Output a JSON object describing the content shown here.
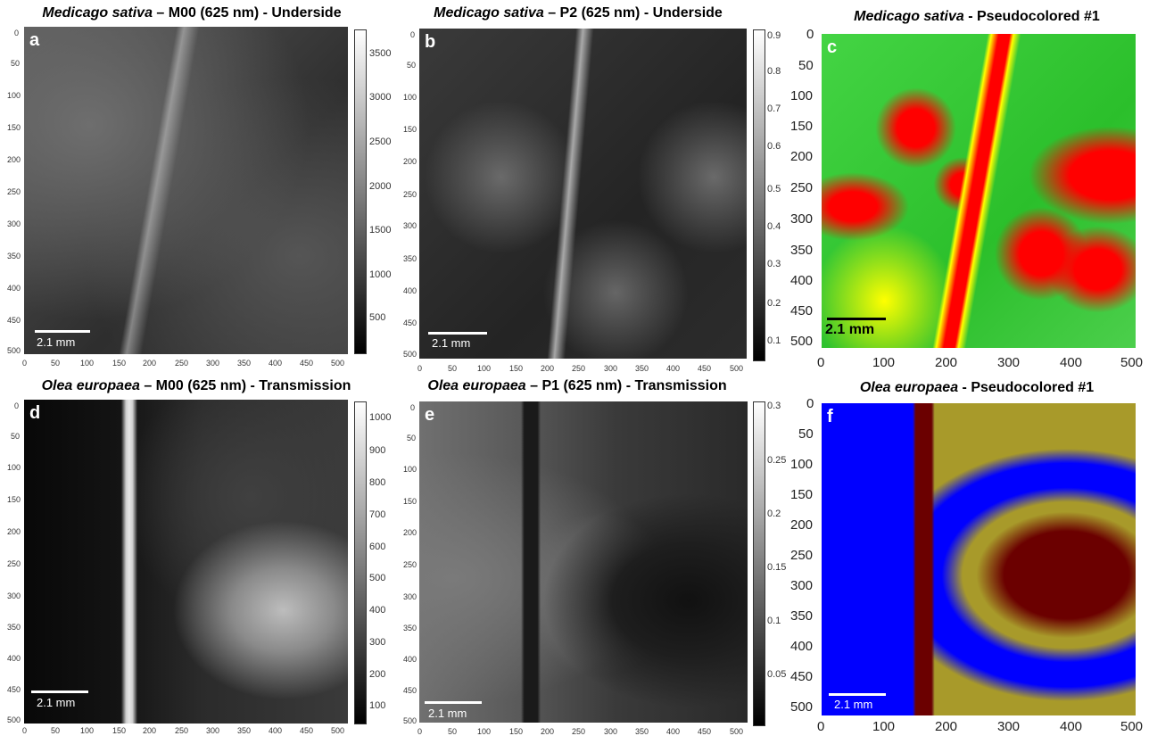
{
  "panels": [
    {
      "letter": "a",
      "title_species": "Medicago sativa",
      "title_rest": " – M00 (625 nm) - Underside",
      "scale": "2.1 mm",
      "colorbar": [
        "3500",
        "3000",
        "2500",
        "2000",
        "1500",
        "1000",
        "500"
      ]
    },
    {
      "letter": "b",
      "title_species": "Medicago sativa",
      "title_rest": " – P2 (625 nm) - Underside",
      "scale": "2.1 mm",
      "colorbar": [
        "0.9",
        "0.8",
        "0.7",
        "0.6",
        "0.5",
        "0.4",
        "0.3",
        "0.2",
        "0.1"
      ]
    },
    {
      "letter": "c",
      "title_species": "Medicago sativa",
      "title_rest": " - Pseudocolored #1",
      "scale": "2.1 mm"
    },
    {
      "letter": "d",
      "title_species": "Olea europaea",
      "title_rest": " – M00 (625 nm) - Transmission",
      "scale": "2.1 mm",
      "colorbar": [
        "1000",
        "900",
        "800",
        "700",
        "600",
        "500",
        "400",
        "300",
        "200",
        "100"
      ]
    },
    {
      "letter": "e",
      "title_species": "Olea europaea",
      "title_rest": " – P1 (625 nm) - Transmission",
      "scale": "2.1 mm",
      "colorbar": [
        "0.3",
        "0.25",
        "0.2",
        "0.15",
        "0.1",
        "0.05"
      ]
    },
    {
      "letter": "f",
      "title_species": "Olea europaea",
      "title_rest": " - Pseudocolored #1",
      "scale": "2.1 mm"
    }
  ],
  "small_axis_ticks": [
    "0",
    "50",
    "100",
    "150",
    "200",
    "250",
    "300",
    "350",
    "400",
    "450",
    "500"
  ],
  "big_axis_ticks_y": [
    "0",
    "50",
    "100",
    "150",
    "200",
    "250",
    "300",
    "350",
    "400",
    "450",
    "500"
  ],
  "big_axis_ticks_x": [
    "0",
    "100",
    "200",
    "300",
    "400",
    "500"
  ],
  "colors": {
    "pseudo_c_green": "#33cc33",
    "pseudo_c_red": "#ff0000",
    "pseudo_c_yellow": "#ffff00",
    "pseudo_f_blue": "#0000ff",
    "pseudo_f_olive": "#a89a2a",
    "pseudo_f_maroon": "#6b0000"
  }
}
